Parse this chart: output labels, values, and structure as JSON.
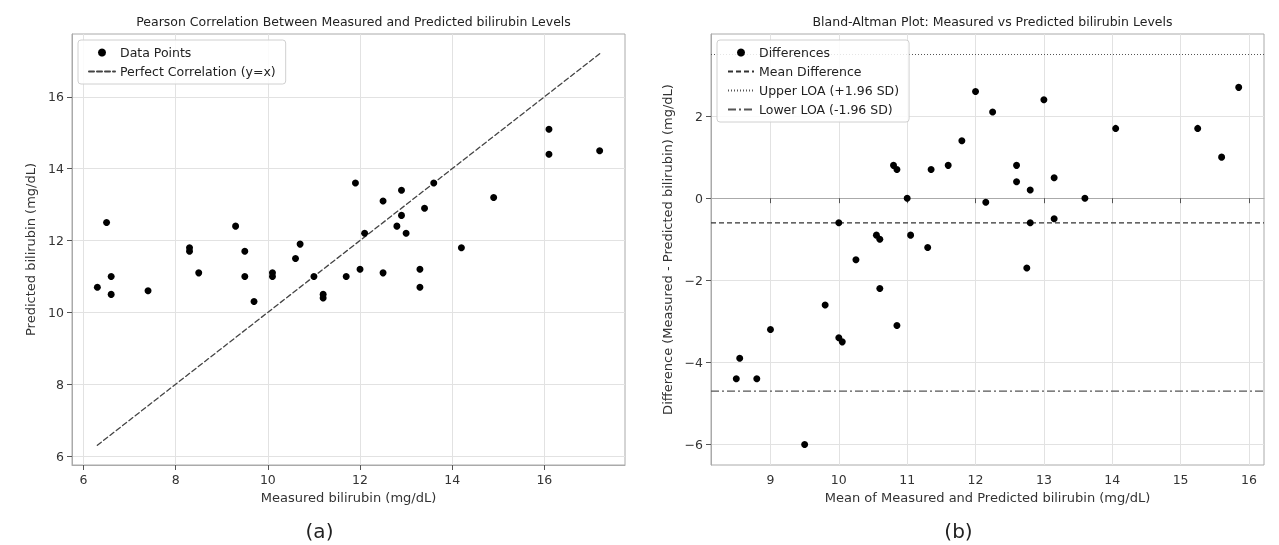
{
  "chart_data": [
    {
      "type": "scatter",
      "title": "Pearson Correlation Between Measured and Predicted bilirubin Levels",
      "xlabel": "Measured bilirubin (mg/dL)",
      "ylabel": "Predicted bilirubin (mg/dL)",
      "annotations": [
        "(a)"
      ],
      "xlim": [
        5.75,
        17.75
      ],
      "ylim": [
        5.75,
        17.75
      ],
      "xticks": [
        6,
        8,
        10,
        12,
        14,
        16
      ],
      "yticks": [
        6,
        8,
        10,
        12,
        14,
        16
      ],
      "grid": true,
      "legend": "top left",
      "marker": "circle",
      "series": [
        {
          "name": "Data Points",
          "color": "#000000",
          "x": [
            6.3,
            6.5,
            6.6,
            6.6,
            7.4,
            8.3,
            8.3,
            8.5,
            9.3,
            9.5,
            9.5,
            9.7,
            10.1,
            10.1,
            10.6,
            10.7,
            11.0,
            11.2,
            11.2,
            11.7,
            11.9,
            12.0,
            12.1,
            12.5,
            12.5,
            12.8,
            12.9,
            12.9,
            13.0,
            13.3,
            13.3,
            13.4,
            13.6,
            14.2,
            14.9,
            16.1,
            16.1,
            17.2
          ],
          "values": [
            10.7,
            12.5,
            11.0,
            10.5,
            10.6,
            11.8,
            11.7,
            11.1,
            12.4,
            11.7,
            11.0,
            10.3,
            11.1,
            11.0,
            11.5,
            11.9,
            11.0,
            10.5,
            10.4,
            11.0,
            13.6,
            11.2,
            12.2,
            13.1,
            11.1,
            12.4,
            13.4,
            12.7,
            12.2,
            11.2,
            10.7,
            12.9,
            13.6,
            11.8,
            13.2,
            15.1,
            14.4,
            14.5
          ]
        },
        {
          "name": "Perfect Correlation (y=x)",
          "type": "line",
          "color": "#444444",
          "line_style": "dashed",
          "marker": "none",
          "x": [
            6.3,
            17.2
          ],
          "values": [
            6.3,
            17.2
          ]
        }
      ]
    },
    {
      "type": "scatter",
      "title": "Bland-Altman Plot: Measured vs Predicted bilirubin Levels",
      "xlabel": "Mean of Measured and Predicted bilirubin (mg/dL)",
      "ylabel": "Difference (Measured - Predicted bilirubin) (mg/dL)",
      "annotations": [
        "(b)"
      ],
      "xlim": [
        8.13,
        16.22
      ],
      "ylim": [
        -6.5,
        4.0
      ],
      "xticks": [
        9,
        10,
        11,
        12,
        13,
        14,
        15,
        16
      ],
      "yticks": [
        -6,
        -4,
        -2,
        0,
        2
      ],
      "grid": true,
      "legend": "top left",
      "marker": "circle",
      "series": [
        {
          "name": "Differences",
          "color": "#000000",
          "x": [
            8.5,
            8.55,
            8.8,
            9.0,
            9.5,
            9.8,
            10.0,
            10.0,
            10.05,
            10.25,
            10.55,
            10.6,
            10.6,
            10.8,
            10.85,
            10.85,
            11.0,
            11.05,
            11.3,
            11.35,
            11.6,
            11.8,
            12.0,
            12.15,
            12.25,
            12.6,
            12.6,
            12.75,
            12.8,
            12.8,
            13.0,
            13.15,
            13.15,
            13.6,
            14.05,
            15.25,
            15.6,
            15.85
          ],
          "values": [
            -4.4,
            -3.9,
            -4.4,
            -3.2,
            -6.0,
            -2.6,
            -0.6,
            -3.4,
            -3.5,
            -1.5,
            -0.9,
            -1.0,
            -2.2,
            0.8,
            0.7,
            -3.1,
            0.0,
            -0.9,
            -1.2,
            0.7,
            0.8,
            1.4,
            2.6,
            -0.1,
            2.1,
            0.8,
            0.4,
            -1.7,
            0.2,
            -0.6,
            2.4,
            0.5,
            -0.5,
            0.0,
            1.7,
            1.7,
            1.0,
            2.7
          ]
        }
      ],
      "ref_lines": [
        {
          "axis": "y",
          "value": -0.6,
          "label": "Mean Difference",
          "color": "#333333",
          "line_style": "dashed"
        },
        {
          "axis": "y",
          "value": 3.5,
          "label": "Upper LOA (+1.96 SD)",
          "color": "#555555",
          "line_style": "dotted"
        },
        {
          "axis": "y",
          "value": -4.7,
          "label": "Lower LOA (-1.96 SD)",
          "color": "#555555",
          "line_style": "dashdot"
        }
      ]
    }
  ]
}
